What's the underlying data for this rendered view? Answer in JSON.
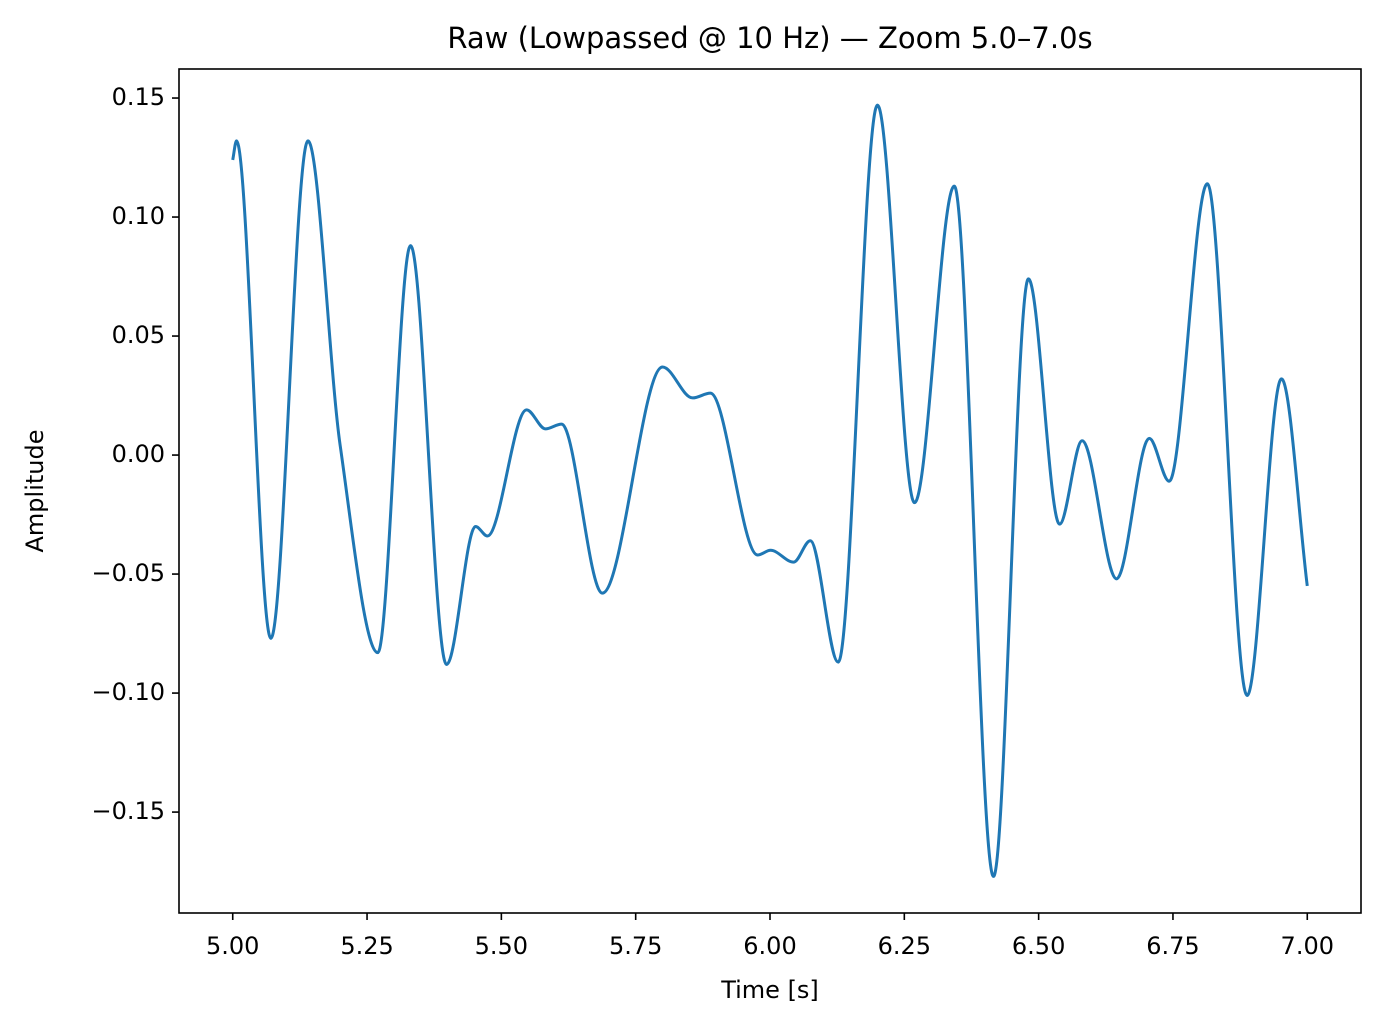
{
  "chart_data": {
    "type": "line",
    "title": "Raw (Lowpassed @ 10 Hz) — Zoom 5.0–7.0s",
    "x_label": "Time [s]",
    "y_label": "Amplitude",
    "xlim": [
      4.9,
      7.1
    ],
    "ylim": [
      -0.1924,
      0.1622
    ],
    "xticks": [
      {
        "value": 5,
        "label": "5.00"
      },
      5.25,
      {
        "value": 5.5,
        "label": "5.50"
      },
      5.75,
      {
        "value": 6,
        "label": "6.00"
      },
      6.25,
      {
        "value": 6.5,
        "label": "6.50"
      },
      6.75,
      {
        "value": 7,
        "label": "7.00"
      }
    ],
    "yticks": [
      {
        "value": -0.15,
        "label": "−0.15"
      },
      {
        "value": -0.1,
        "label": "−0.10"
      },
      {
        "value": -0.05,
        "label": "−0.05"
      },
      {
        "value": 0,
        "label": "0.00"
      },
      0.05,
      {
        "value": 0.1,
        "label": "0.10"
      },
      0.15
    ],
    "grid": false,
    "series": [
      {
        "color": "#1f77b4",
        "x": [
          5.0,
          5.007,
          5.071,
          5.14,
          5.2,
          5.27,
          5.331,
          5.398,
          5.452,
          5.474,
          5.547,
          5.582,
          5.612,
          5.688,
          5.8,
          5.856,
          5.889,
          5.977,
          6.001,
          6.044,
          6.075,
          6.127,
          6.2,
          6.269,
          6.343,
          6.416,
          6.481,
          6.539,
          6.581,
          6.645,
          6.706,
          6.743,
          6.814,
          6.888,
          6.952,
          7.0
        ],
        "values": [
          0.124,
          0.132,
          -0.077,
          0.132,
          0.004,
          -0.083,
          0.088,
          -0.088,
          -0.03,
          -0.034,
          0.019,
          0.011,
          0.013,
          -0.058,
          0.037,
          0.024,
          0.026,
          -0.042,
          -0.04,
          -0.045,
          -0.036,
          -0.087,
          0.147,
          -0.02,
          0.113,
          -0.177,
          0.074,
          -0.029,
          0.006,
          -0.052,
          0.007,
          -0.011,
          0.114,
          -0.101,
          0.032,
          -0.055
        ]
      }
    ]
  }
}
